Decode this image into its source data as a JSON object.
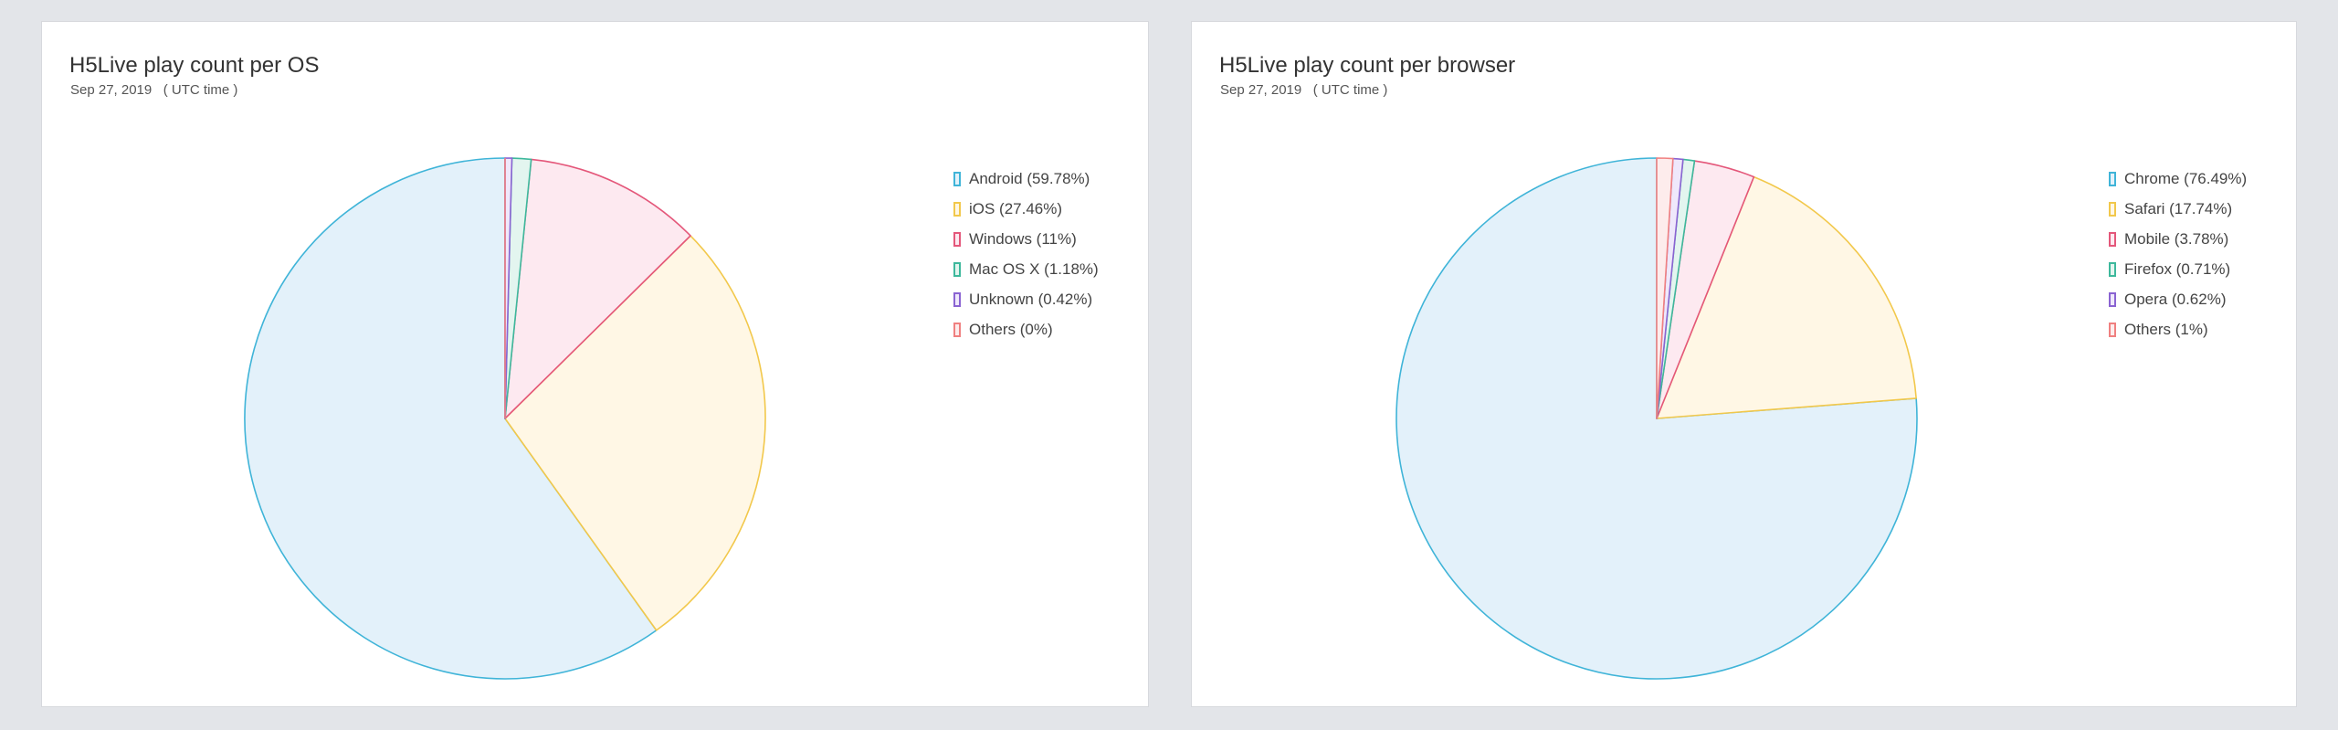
{
  "colors": {
    "page_bg": "#e3e5e9",
    "card_bg": "#ffffff"
  },
  "panels": [
    {
      "title": "H5Live play count per OS",
      "subtitle": "Sep 27, 2019   ( UTC time )",
      "legend": [
        {
          "label": "Android (59.78%)"
        },
        {
          "label": "iOS (27.46%)"
        },
        {
          "label": "Windows (11%)"
        },
        {
          "label": "Mac OS X (1.18%)"
        },
        {
          "label": "Unknown (0.42%)"
        },
        {
          "label": "Others (0%)"
        }
      ]
    },
    {
      "title": "H5Live play count per browser",
      "subtitle": "Sep 27, 2019   ( UTC time )",
      "legend": [
        {
          "label": "Chrome (76.49%)"
        },
        {
          "label": "Safari (17.74%)"
        },
        {
          "label": "Mobile (3.78%)"
        },
        {
          "label": "Firefox (0.71%)"
        },
        {
          "label": "Opera (0.62%)"
        },
        {
          "label": "Others (1%)"
        }
      ]
    }
  ],
  "chart_data": [
    {
      "type": "pie",
      "title": "H5Live play count per OS",
      "subtitle": "Sep 27, 2019   ( UTC time )",
      "legend_position": "top-right",
      "series": [
        {
          "name": "Android",
          "value": 59.78,
          "stroke": "#3fb4d8",
          "fill": "#e3f1fa"
        },
        {
          "name": "iOS",
          "value": 27.46,
          "stroke": "#f2c84b",
          "fill": "#fff7e5"
        },
        {
          "name": "Windows",
          "value": 11,
          "stroke": "#e4577a",
          "fill": "#fde9f0"
        },
        {
          "name": "Mac OS X",
          "value": 1.18,
          "stroke": "#3db89c",
          "fill": "#e3f5ef"
        },
        {
          "name": "Unknown",
          "value": 0.42,
          "stroke": "#8a63d2",
          "fill": "#efe8fb"
        },
        {
          "name": "Others",
          "value": 0,
          "stroke": "#f08080",
          "fill": "#fdecec"
        }
      ]
    },
    {
      "type": "pie",
      "title": "H5Live play count per browser",
      "subtitle": "Sep 27, 2019   ( UTC time )",
      "legend_position": "top-right",
      "series": [
        {
          "name": "Chrome",
          "value": 76.49,
          "stroke": "#3fb4d8",
          "fill": "#e3f1fa"
        },
        {
          "name": "Safari",
          "value": 17.74,
          "stroke": "#f2c84b",
          "fill": "#fff7e5"
        },
        {
          "name": "Mobile",
          "value": 3.78,
          "stroke": "#e4577a",
          "fill": "#fde9f0"
        },
        {
          "name": "Firefox",
          "value": 0.71,
          "stroke": "#3db89c",
          "fill": "#e3f5ef"
        },
        {
          "name": "Opera",
          "value": 0.62,
          "stroke": "#8a63d2",
          "fill": "#efe8fb"
        },
        {
          "name": "Others",
          "value": 1,
          "stroke": "#f08080",
          "fill": "#fdecec"
        }
      ]
    }
  ]
}
